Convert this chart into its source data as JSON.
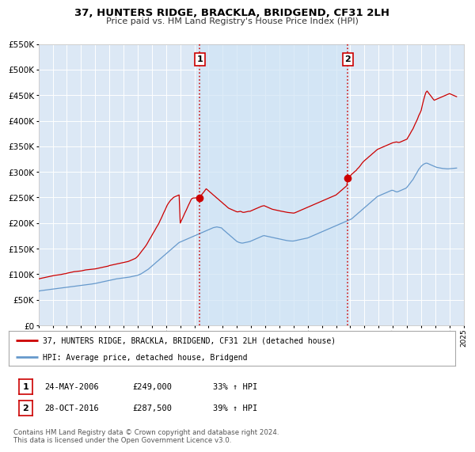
{
  "title": "37, HUNTERS RIDGE, BRACKLA, BRIDGEND, CF31 2LH",
  "subtitle": "Price paid vs. HM Land Registry's House Price Index (HPI)",
  "property_label": "37, HUNTERS RIDGE, BRACKLA, BRIDGEND, CF31 2LH (detached house)",
  "hpi_label": "HPI: Average price, detached house, Bridgend",
  "transaction1_date": "24-MAY-2006",
  "transaction1_price": 249000,
  "transaction1_str": "£249,000",
  "transaction1_hpi": "33% ↑ HPI",
  "transaction2_date": "28-OCT-2016",
  "transaction2_price": 287500,
  "transaction2_str": "£287,500",
  "transaction2_hpi": "39% ↑ HPI",
  "vline1_x": 2006.38,
  "vline2_x": 2016.83,
  "property_color": "#cc0000",
  "hpi_color": "#6699cc",
  "highlight_color": "#d0e4f5",
  "background_color": "#dce8f5",
  "ylim": [
    0,
    550000
  ],
  "xlim_start": 1995.0,
  "xlim_end": 2025.0,
  "footer": "Contains HM Land Registry data © Crown copyright and database right 2024.\nThis data is licensed under the Open Government Licence v3.0.",
  "property_data_x": [
    1995.0,
    1995.08,
    1995.17,
    1995.25,
    1995.33,
    1995.42,
    1995.5,
    1995.58,
    1995.67,
    1995.75,
    1995.83,
    1995.92,
    1996.0,
    1996.08,
    1996.17,
    1996.25,
    1996.33,
    1996.42,
    1996.5,
    1996.58,
    1996.67,
    1996.75,
    1996.83,
    1996.92,
    1997.0,
    1997.08,
    1997.17,
    1997.25,
    1997.33,
    1997.42,
    1997.5,
    1997.58,
    1997.67,
    1997.75,
    1997.83,
    1997.92,
    1998.0,
    1998.08,
    1998.17,
    1998.25,
    1998.33,
    1998.42,
    1998.5,
    1998.58,
    1998.67,
    1998.75,
    1998.83,
    1998.92,
    1999.0,
    1999.08,
    1999.17,
    1999.25,
    1999.33,
    1999.42,
    1999.5,
    1999.58,
    1999.67,
    1999.75,
    1999.83,
    1999.92,
    2000.0,
    2000.08,
    2000.17,
    2000.25,
    2000.33,
    2000.42,
    2000.5,
    2000.58,
    2000.67,
    2000.75,
    2000.83,
    2000.92,
    2001.0,
    2001.08,
    2001.17,
    2001.25,
    2001.33,
    2001.42,
    2001.5,
    2001.58,
    2001.67,
    2001.75,
    2001.83,
    2001.92,
    2002.0,
    2002.08,
    2002.17,
    2002.25,
    2002.33,
    2002.42,
    2002.5,
    2002.58,
    2002.67,
    2002.75,
    2002.83,
    2002.92,
    2003.0,
    2003.08,
    2003.17,
    2003.25,
    2003.33,
    2003.42,
    2003.5,
    2003.58,
    2003.67,
    2003.75,
    2003.83,
    2003.92,
    2004.0,
    2004.08,
    2004.17,
    2004.25,
    2004.33,
    2004.42,
    2004.5,
    2004.58,
    2004.67,
    2004.75,
    2004.83,
    2004.92,
    2005.0,
    2005.08,
    2005.17,
    2005.25,
    2005.33,
    2005.42,
    2005.5,
    2005.58,
    2005.67,
    2005.75,
    2005.83,
    2005.92,
    2006.0,
    2006.08,
    2006.17,
    2006.25,
    2006.38,
    2006.42,
    2006.5,
    2006.58,
    2006.67,
    2006.75,
    2006.83,
    2006.92,
    2007.0,
    2007.08,
    2007.17,
    2007.25,
    2007.33,
    2007.42,
    2007.5,
    2007.58,
    2007.67,
    2007.75,
    2007.83,
    2007.92,
    2008.0,
    2008.08,
    2008.17,
    2008.25,
    2008.33,
    2008.42,
    2008.5,
    2008.58,
    2008.67,
    2008.75,
    2008.83,
    2008.92,
    2009.0,
    2009.08,
    2009.17,
    2009.25,
    2009.33,
    2009.42,
    2009.5,
    2009.58,
    2009.67,
    2009.75,
    2009.83,
    2009.92,
    2010.0,
    2010.08,
    2010.17,
    2010.25,
    2010.33,
    2010.42,
    2010.5,
    2010.58,
    2010.67,
    2010.75,
    2010.83,
    2010.92,
    2011.0,
    2011.08,
    2011.17,
    2011.25,
    2011.33,
    2011.42,
    2011.5,
    2011.58,
    2011.67,
    2011.75,
    2011.83,
    2011.92,
    2012.0,
    2012.08,
    2012.17,
    2012.25,
    2012.33,
    2012.42,
    2012.5,
    2012.58,
    2012.67,
    2012.75,
    2012.83,
    2012.92,
    2013.0,
    2013.08,
    2013.17,
    2013.25,
    2013.33,
    2013.42,
    2013.5,
    2013.58,
    2013.67,
    2013.75,
    2013.83,
    2013.92,
    2014.0,
    2014.08,
    2014.17,
    2014.25,
    2014.33,
    2014.42,
    2014.5,
    2014.58,
    2014.67,
    2014.75,
    2014.83,
    2014.92,
    2015.0,
    2015.08,
    2015.17,
    2015.25,
    2015.33,
    2015.42,
    2015.5,
    2015.58,
    2015.67,
    2015.75,
    2015.83,
    2015.92,
    2016.0,
    2016.08,
    2016.17,
    2016.25,
    2016.33,
    2016.42,
    2016.5,
    2016.58,
    2016.67,
    2016.75,
    2016.83,
    2016.92,
    2017.0,
    2017.08,
    2017.17,
    2017.25,
    2017.33,
    2017.42,
    2017.5,
    2017.58,
    2017.67,
    2017.75,
    2017.83,
    2017.92,
    2018.0,
    2018.08,
    2018.17,
    2018.25,
    2018.33,
    2018.42,
    2018.5,
    2018.58,
    2018.67,
    2018.75,
    2018.83,
    2018.92,
    2019.0,
    2019.08,
    2019.17,
    2019.25,
    2019.33,
    2019.42,
    2019.5,
    2019.58,
    2019.67,
    2019.75,
    2019.83,
    2019.92,
    2020.0,
    2020.08,
    2020.17,
    2020.25,
    2020.33,
    2020.42,
    2020.5,
    2020.58,
    2020.67,
    2020.75,
    2020.83,
    2020.92,
    2021.0,
    2021.08,
    2021.17,
    2021.25,
    2021.33,
    2021.42,
    2021.5,
    2021.58,
    2021.67,
    2021.75,
    2021.83,
    2021.92,
    2022.0,
    2022.08,
    2022.17,
    2022.25,
    2022.33,
    2022.42,
    2022.5,
    2022.58,
    2022.67,
    2022.75,
    2022.83,
    2022.92,
    2023.0,
    2023.08,
    2023.17,
    2023.25,
    2023.33,
    2023.42,
    2023.5,
    2023.58,
    2023.67,
    2023.75,
    2023.83,
    2023.92,
    2024.0,
    2024.08,
    2024.17,
    2024.25,
    2024.33,
    2024.42,
    2024.5
  ],
  "property_data_y": [
    91000,
    91500,
    92000,
    92500,
    93000,
    93500,
    94000,
    94500,
    95000,
    95500,
    96000,
    96500,
    97000,
    97500,
    98000,
    98200,
    98500,
    98800,
    99000,
    99500,
    100000,
    100500,
    101000,
    101200,
    102000,
    102500,
    103000,
    103500,
    104000,
    104500,
    105000,
    105200,
    105500,
    105800,
    106000,
    106200,
    106500,
    107000,
    107500,
    108000,
    108500,
    108800,
    109000,
    109200,
    109500,
    109800,
    110000,
    110200,
    110500,
    111000,
    111500,
    112000,
    112500,
    113000,
    113500,
    114000,
    114500,
    115000,
    115500,
    116000,
    117000,
    117500,
    118000,
    118500,
    119000,
    119500,
    120000,
    120500,
    121000,
    121500,
    122000,
    122500,
    123000,
    123500,
    124000,
    124500,
    125000,
    126000,
    127000,
    128000,
    129000,
    130000,
    131000,
    133000,
    135000,
    138000,
    141000,
    144000,
    147000,
    150000,
    153000,
    156000,
    160000,
    164000,
    168000,
    172000,
    176000,
    180000,
    184000,
    188000,
    192000,
    196000,
    200000,
    205000,
    210000,
    215000,
    220000,
    225000,
    230000,
    235000,
    239000,
    242000,
    245000,
    247000,
    249500,
    251000,
    252000,
    253000,
    254000,
    255000,
    200000,
    205000,
    210000,
    215000,
    220000,
    225000,
    230000,
    235000,
    240000,
    245000,
    248000,
    249000,
    249000,
    249200,
    249500,
    249800,
    249000,
    252000,
    255000,
    258000,
    261000,
    264000,
    267000,
    265000,
    263000,
    261000,
    259000,
    257000,
    255000,
    253000,
    251000,
    249000,
    247000,
    245000,
    243000,
    241000,
    239000,
    237000,
    235000,
    233000,
    231000,
    229000,
    228000,
    227000,
    226000,
    225000,
    224000,
    223000,
    222000,
    222000,
    222500,
    223000,
    222000,
    221000,
    221000,
    221500,
    222000,
    222500,
    223000,
    223000,
    224000,
    225000,
    226000,
    227000,
    228000,
    229000,
    230000,
    231000,
    232000,
    233000,
    233500,
    234000,
    233000,
    232000,
    231000,
    230000,
    229000,
    228000,
    227000,
    226500,
    226000,
    225500,
    225000,
    224500,
    224000,
    223500,
    223000,
    222500,
    222000,
    221500,
    221000,
    220800,
    220500,
    220200,
    220000,
    219800,
    219500,
    220000,
    221000,
    222000,
    223000,
    224000,
    225000,
    226000,
    227000,
    228000,
    229000,
    230000,
    231000,
    232000,
    233000,
    234000,
    235000,
    236000,
    237000,
    238000,
    239000,
    240000,
    241000,
    242000,
    243000,
    244000,
    245000,
    246000,
    247000,
    248000,
    249000,
    250000,
    251000,
    252000,
    253000,
    254000,
    255000,
    257000,
    259000,
    261000,
    263000,
    265000,
    267000,
    269000,
    271000,
    273000,
    287500,
    289000,
    292000,
    295000,
    297000,
    299000,
    301000,
    303000,
    306000,
    308000,
    311000,
    314000,
    317000,
    320000,
    322000,
    324000,
    326000,
    328000,
    330000,
    332000,
    334000,
    336000,
    338000,
    340000,
    342000,
    344000,
    345000,
    346000,
    347000,
    348000,
    349000,
    350000,
    351000,
    352000,
    353000,
    354000,
    355000,
    356000,
    357000,
    357500,
    358000,
    358500,
    358000,
    357500,
    358000,
    359000,
    360000,
    361000,
    362000,
    363000,
    364000,
    368000,
    372000,
    376000,
    380000,
    384000,
    389000,
    394000,
    399000,
    404000,
    410000,
    415000,
    420000,
    430000,
    440000,
    448000,
    455000,
    458000,
    455000,
    452000,
    449000,
    446000,
    443000,
    440000,
    441000,
    442000,
    443000,
    444000,
    445000,
    446000,
    447000,
    448000,
    449000,
    450000,
    451000,
    452000,
    453000,
    452000,
    451000,
    450000,
    449000,
    448000,
    447000
  ],
  "hpi_data_x": [
    1995.0,
    1995.08,
    1995.17,
    1995.25,
    1995.33,
    1995.42,
    1995.5,
    1995.58,
    1995.67,
    1995.75,
    1995.83,
    1995.92,
    1996.0,
    1996.08,
    1996.17,
    1996.25,
    1996.33,
    1996.42,
    1996.5,
    1996.58,
    1996.67,
    1996.75,
    1996.83,
    1996.92,
    1997.0,
    1997.08,
    1997.17,
    1997.25,
    1997.33,
    1997.42,
    1997.5,
    1997.58,
    1997.67,
    1997.75,
    1997.83,
    1997.92,
    1998.0,
    1998.08,
    1998.17,
    1998.25,
    1998.33,
    1998.42,
    1998.5,
    1998.58,
    1998.67,
    1998.75,
    1998.83,
    1998.92,
    1999.0,
    1999.08,
    1999.17,
    1999.25,
    1999.33,
    1999.42,
    1999.5,
    1999.58,
    1999.67,
    1999.75,
    1999.83,
    1999.92,
    2000.0,
    2000.08,
    2000.17,
    2000.25,
    2000.33,
    2000.42,
    2000.5,
    2000.58,
    2000.67,
    2000.75,
    2000.83,
    2000.92,
    2001.0,
    2001.08,
    2001.17,
    2001.25,
    2001.33,
    2001.42,
    2001.5,
    2001.58,
    2001.67,
    2001.75,
    2001.83,
    2001.92,
    2002.0,
    2002.08,
    2002.17,
    2002.25,
    2002.33,
    2002.42,
    2002.5,
    2002.58,
    2002.67,
    2002.75,
    2002.83,
    2002.92,
    2003.0,
    2003.08,
    2003.17,
    2003.25,
    2003.33,
    2003.42,
    2003.5,
    2003.58,
    2003.67,
    2003.75,
    2003.83,
    2003.92,
    2004.0,
    2004.08,
    2004.17,
    2004.25,
    2004.33,
    2004.42,
    2004.5,
    2004.58,
    2004.67,
    2004.75,
    2004.83,
    2004.92,
    2005.0,
    2005.08,
    2005.17,
    2005.25,
    2005.33,
    2005.42,
    2005.5,
    2005.58,
    2005.67,
    2005.75,
    2005.83,
    2005.92,
    2006.0,
    2006.08,
    2006.17,
    2006.25,
    2006.33,
    2006.42,
    2006.5,
    2006.58,
    2006.67,
    2006.75,
    2006.83,
    2006.92,
    2007.0,
    2007.08,
    2007.17,
    2007.25,
    2007.33,
    2007.42,
    2007.5,
    2007.58,
    2007.67,
    2007.75,
    2007.83,
    2007.92,
    2008.0,
    2008.08,
    2008.17,
    2008.25,
    2008.33,
    2008.42,
    2008.5,
    2008.58,
    2008.67,
    2008.75,
    2008.83,
    2008.92,
    2009.0,
    2009.08,
    2009.17,
    2009.25,
    2009.33,
    2009.42,
    2009.5,
    2009.58,
    2009.67,
    2009.75,
    2009.83,
    2009.92,
    2010.0,
    2010.08,
    2010.17,
    2010.25,
    2010.33,
    2010.42,
    2010.5,
    2010.58,
    2010.67,
    2010.75,
    2010.83,
    2010.92,
    2011.0,
    2011.08,
    2011.17,
    2011.25,
    2011.33,
    2011.42,
    2011.5,
    2011.58,
    2011.67,
    2011.75,
    2011.83,
    2011.92,
    2012.0,
    2012.08,
    2012.17,
    2012.25,
    2012.33,
    2012.42,
    2012.5,
    2012.58,
    2012.67,
    2012.75,
    2012.83,
    2012.92,
    2013.0,
    2013.08,
    2013.17,
    2013.25,
    2013.33,
    2013.42,
    2013.5,
    2013.58,
    2013.67,
    2013.75,
    2013.83,
    2013.92,
    2014.0,
    2014.08,
    2014.17,
    2014.25,
    2014.33,
    2014.42,
    2014.5,
    2014.58,
    2014.67,
    2014.75,
    2014.83,
    2014.92,
    2015.0,
    2015.08,
    2015.17,
    2015.25,
    2015.33,
    2015.42,
    2015.5,
    2015.58,
    2015.67,
    2015.75,
    2015.83,
    2015.92,
    2016.0,
    2016.08,
    2016.17,
    2016.25,
    2016.33,
    2016.42,
    2016.5,
    2016.58,
    2016.67,
    2016.75,
    2016.83,
    2016.92,
    2017.0,
    2017.08,
    2017.17,
    2017.25,
    2017.33,
    2017.42,
    2017.5,
    2017.58,
    2017.67,
    2017.75,
    2017.83,
    2017.92,
    2018.0,
    2018.08,
    2018.17,
    2018.25,
    2018.33,
    2018.42,
    2018.5,
    2018.58,
    2018.67,
    2018.75,
    2018.83,
    2018.92,
    2019.0,
    2019.08,
    2019.17,
    2019.25,
    2019.33,
    2019.42,
    2019.5,
    2019.58,
    2019.67,
    2019.75,
    2019.83,
    2019.92,
    2020.0,
    2020.08,
    2020.17,
    2020.25,
    2020.33,
    2020.42,
    2020.5,
    2020.58,
    2020.67,
    2020.75,
    2020.83,
    2020.92,
    2021.0,
    2021.08,
    2021.17,
    2021.25,
    2021.33,
    2021.42,
    2021.5,
    2021.58,
    2021.67,
    2021.75,
    2021.83,
    2021.92,
    2022.0,
    2022.08,
    2022.17,
    2022.25,
    2022.33,
    2022.42,
    2022.5,
    2022.58,
    2022.67,
    2022.75,
    2022.83,
    2022.92,
    2023.0,
    2023.08,
    2023.17,
    2023.25,
    2023.33,
    2023.42,
    2023.5,
    2023.58,
    2023.67,
    2023.75,
    2023.83,
    2023.92,
    2024.0,
    2024.08,
    2024.17,
    2024.25,
    2024.33,
    2024.42,
    2024.5
  ],
  "hpi_data_y": [
    67000,
    67500,
    68000,
    68300,
    68600,
    68900,
    69200,
    69500,
    69800,
    70100,
    70400,
    70700,
    71000,
    71300,
    71600,
    71900,
    72200,
    72500,
    72800,
    73100,
    73400,
    73700,
    74000,
    74300,
    74600,
    74900,
    75200,
    75500,
    75800,
    76100,
    76400,
    76700,
    77000,
    77300,
    77600,
    77900,
    78200,
    78500,
    78800,
    79100,
    79400,
    79700,
    80000,
    80300,
    80600,
    80900,
    81200,
    81500,
    82000,
    82500,
    83000,
    83500,
    84000,
    84500,
    85000,
    85500,
    86000,
    86500,
    87000,
    87500,
    88000,
    88500,
    89000,
    89500,
    90000,
    90500,
    91000,
    91300,
    91600,
    91900,
    92200,
    92500,
    92800,
    93100,
    93400,
    93700,
    94000,
    94500,
    95000,
    95500,
    96000,
    96500,
    97000,
    97500,
    98000,
    99000,
    100000,
    101000,
    102500,
    104000,
    105500,
    107000,
    108500,
    110000,
    112000,
    114000,
    116000,
    118000,
    120000,
    122000,
    124000,
    126000,
    128000,
    130000,
    132000,
    134000,
    136000,
    138000,
    140000,
    142000,
    144000,
    146000,
    148000,
    150000,
    152000,
    154000,
    156000,
    158000,
    160000,
    162000,
    163000,
    164000,
    165000,
    166000,
    167000,
    168000,
    169000,
    170000,
    171000,
    172000,
    173000,
    174000,
    175000,
    176000,
    177000,
    178000,
    179000,
    180000,
    181000,
    182000,
    183000,
    184000,
    185000,
    186000,
    187000,
    188000,
    189000,
    190000,
    191000,
    191500,
    192000,
    192500,
    192000,
    191500,
    191000,
    190500,
    188000,
    186000,
    184000,
    182000,
    180000,
    178000,
    176000,
    174000,
    172000,
    170000,
    168000,
    166000,
    164000,
    163000,
    162000,
    161500,
    161000,
    161000,
    161500,
    162000,
    162500,
    163000,
    163500,
    164000,
    165000,
    166000,
    167000,
    168000,
    169000,
    170000,
    171000,
    172000,
    173000,
    174000,
    175000,
    175500,
    175000,
    174500,
    174000,
    173500,
    173000,
    172500,
    172000,
    171500,
    171000,
    170500,
    170000,
    169500,
    169000,
    168500,
    168000,
    167500,
    167000,
    166500,
    166000,
    165700,
    165400,
    165100,
    165000,
    164900,
    165000,
    165500,
    166000,
    166500,
    167000,
    167500,
    168000,
    168500,
    169000,
    169500,
    170000,
    170500,
    171000,
    172000,
    173000,
    174000,
    175000,
    176000,
    177000,
    178000,
    179000,
    180000,
    181000,
    182000,
    183000,
    184000,
    185000,
    186000,
    187000,
    188000,
    189000,
    190000,
    191000,
    192000,
    193000,
    194000,
    195000,
    196000,
    197000,
    198000,
    199000,
    200000,
    201000,
    202000,
    203000,
    204000,
    205000,
    206000,
    207000,
    208000,
    210000,
    212000,
    214000,
    216000,
    218000,
    220000,
    222000,
    224000,
    226000,
    228000,
    230000,
    232000,
    234000,
    236000,
    238000,
    240000,
    242000,
    244000,
    246000,
    248000,
    250000,
    252000,
    253000,
    254000,
    255000,
    256000,
    257000,
    258000,
    259000,
    260000,
    261000,
    262000,
    263000,
    264000,
    264000,
    263000,
    262000,
    261000,
    261000,
    262000,
    263000,
    264000,
    265000,
    266000,
    267000,
    268000,
    270000,
    273000,
    276000,
    279000,
    282000,
    285000,
    289000,
    293000,
    297000,
    301000,
    305000,
    308000,
    311000,
    313000,
    315000,
    316000,
    317000,
    317000,
    316000,
    315000,
    314000,
    313000,
    312000,
    311000,
    310000,
    309000,
    308500,
    308000,
    307500,
    307000,
    306800,
    306600,
    306400,
    306200,
    306000,
    306000,
    306200,
    306400,
    306600,
    306800,
    307000,
    307200,
    307500
  ]
}
